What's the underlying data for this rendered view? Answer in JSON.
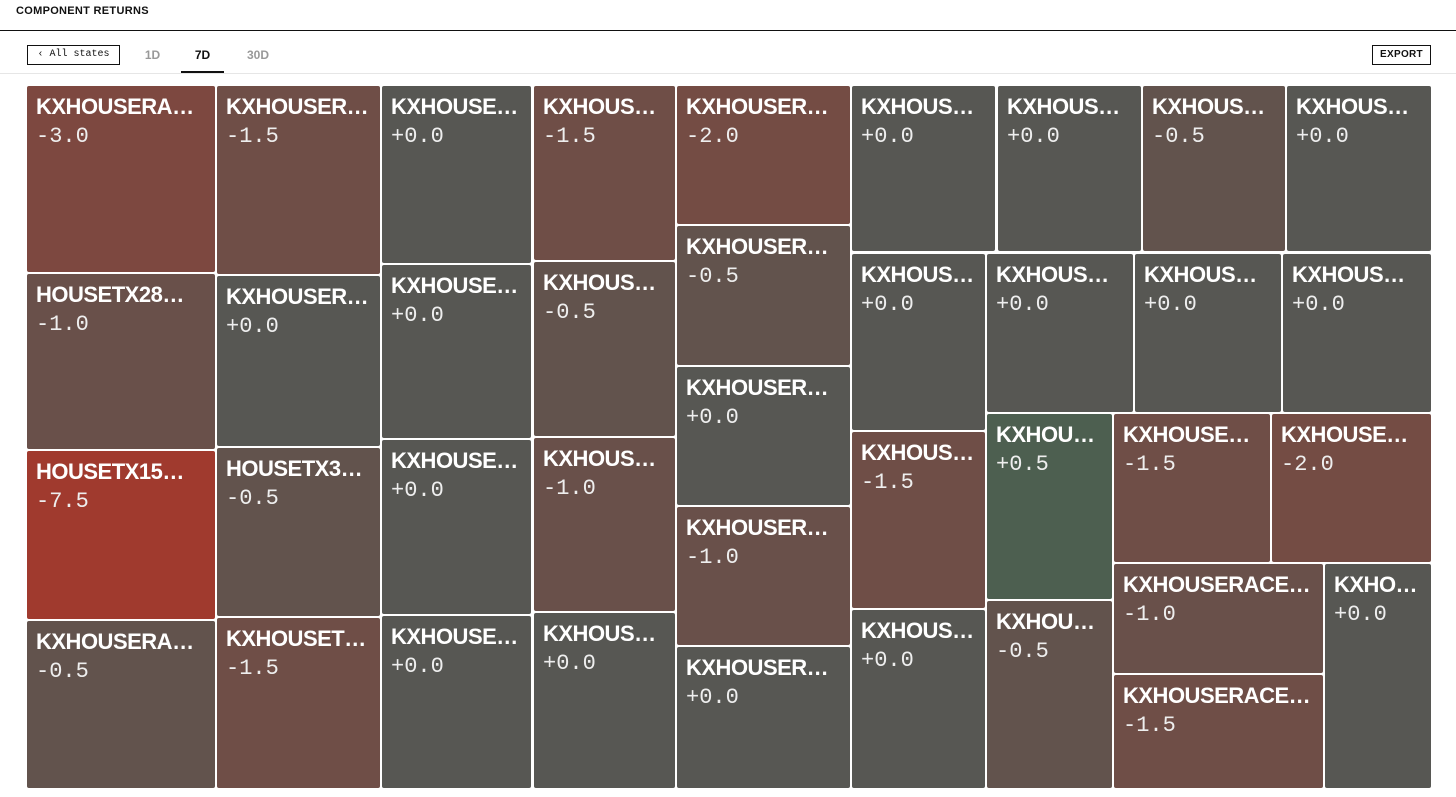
{
  "header": {
    "title": "COMPONENT RETURNS"
  },
  "toolbar": {
    "back": "‹ All states",
    "tabs": [
      "1D",
      "7D",
      "30D"
    ],
    "active_tab": "7D",
    "export": "EXPORT"
  },
  "tiles": [
    {
      "label": "KXHOUSERA…",
      "value": "-3.0"
    },
    {
      "label": "HOUSETX28…",
      "value": "-1.0"
    },
    {
      "label": "HOUSETX15…",
      "value": "-7.5"
    },
    {
      "label": "KXHOUSERA…",
      "value": "-0.5"
    },
    {
      "label": "KXHOUSER…",
      "value": "-1.5"
    },
    {
      "label": "KXHOUSER…",
      "value": "+0.0"
    },
    {
      "label": "HOUSETX3…",
      "value": "-0.5"
    },
    {
      "label": "KXHOUSET…",
      "value": "-1.5"
    },
    {
      "label": "KXHOUSE…",
      "value": "+0.0"
    },
    {
      "label": "KXHOUSE…",
      "value": "+0.0"
    },
    {
      "label": "KXHOUSE…",
      "value": "+0.0"
    },
    {
      "label": "KXHOUSE…",
      "value": "+0.0"
    },
    {
      "label": "KXHOUS…",
      "value": "-1.5"
    },
    {
      "label": "KXHOUS…",
      "value": "-0.5"
    },
    {
      "label": "KXHOUS…",
      "value": "-1.0"
    },
    {
      "label": "KXHOUS…",
      "value": "+0.0"
    },
    {
      "label": "KXHOUSER…",
      "value": "-2.0"
    },
    {
      "label": "KXHOUSER…",
      "value": "-0.5"
    },
    {
      "label": "KXHOUSER…",
      "value": "+0.0"
    },
    {
      "label": "KXHOUSER…",
      "value": "-1.0"
    },
    {
      "label": "KXHOUSER…",
      "value": "+0.0"
    },
    {
      "label": "KXHOUS…",
      "value": "+0.0"
    },
    {
      "label": "KXHOUS…",
      "value": "+0.0"
    },
    {
      "label": "KXHOUS…",
      "value": "-0.5"
    },
    {
      "label": "KXHOUS…",
      "value": "+0.0"
    },
    {
      "label": "KXHOUS…",
      "value": "+0.0"
    },
    {
      "label": "KXHOUS…",
      "value": "-1.5"
    },
    {
      "label": "KXHOUS…",
      "value": "+0.0"
    },
    {
      "label": "KXHOUS…",
      "value": "+0.0"
    },
    {
      "label": "KXHOUS…",
      "value": "+0.0"
    },
    {
      "label": "KXHOUS…",
      "value": "+0.0"
    },
    {
      "label": "KXHOU…",
      "value": "+0.5"
    },
    {
      "label": "KXHOU…",
      "value": "-0.5"
    },
    {
      "label": "KXHOUSE…",
      "value": "-1.5"
    },
    {
      "label": "KXHOUSE…",
      "value": "-2.0"
    },
    {
      "label": "KXHOUSERACE…",
      "value": "-1.0"
    },
    {
      "label": "KXHOUSERACE…",
      "value": "-1.5"
    },
    {
      "label": "KXHO…",
      "value": "+0.0"
    }
  ]
}
